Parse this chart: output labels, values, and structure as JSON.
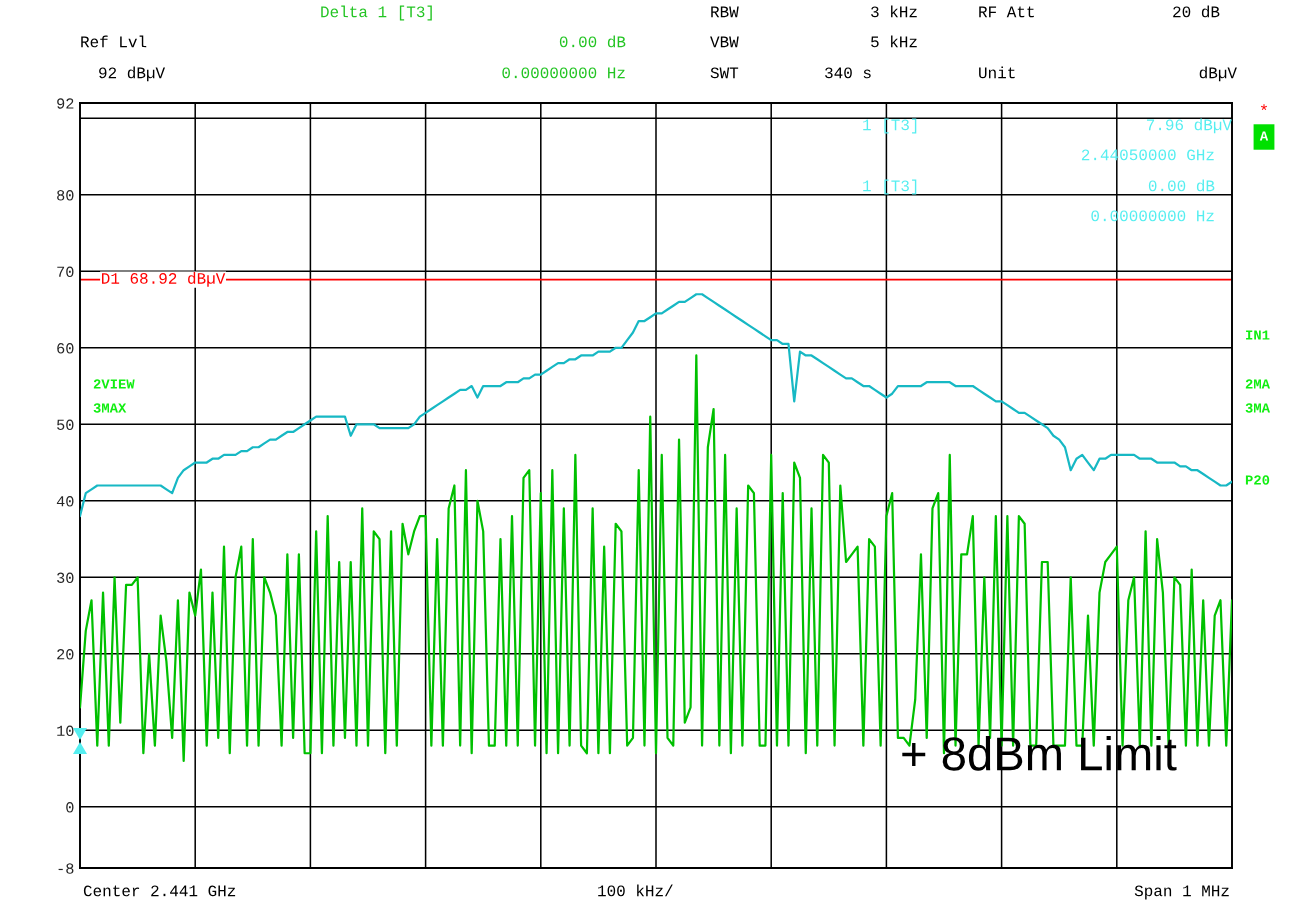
{
  "chart_data": {
    "type": "line",
    "annotations": [
      "Delta 1 [T3]",
      "RBW",
      "3 kHz",
      "RF Att",
      "20 dB",
      "Ref Lvl",
      "0.00 dB",
      "VBW",
      "5 kHz",
      "92 dBµV",
      "0.00000000 Hz",
      "SWT",
      "340 s",
      "Unit",
      "dBµV",
      "1 [T3]",
      "7.96 dBµV",
      "2.44050000 GHz",
      "1 [T3]",
      "0.00 dB",
      "0.00000000 Hz",
      "*",
      "A",
      "IN1",
      "2MA",
      "3MA",
      "P20",
      "2VIEW",
      "3MAX",
      "+ 8dBm Limit",
      "Center 2.441 GHz",
      "100 kHz/",
      "Span 1 MHz"
    ],
    "categories": [
      null,
      null,
      null,
      null,
      null,
      null,
      null,
      null,
      null,
      null,
      null,
      null,
      null,
      null,
      null,
      null,
      null,
      null,
      null,
      null,
      null,
      null,
      null,
      null,
      null,
      null,
      null,
      null,
      null,
      null,
      null,
      null,
      null,
      null,
      null,
      null,
      null,
      null,
      null,
      null,
      null,
      null,
      null,
      null,
      null,
      null,
      null,
      null,
      null,
      null,
      null,
      null,
      null,
      null,
      null,
      null,
      null,
      null,
      null,
      null,
      null,
      null,
      null,
      null,
      null,
      null,
      null,
      null,
      null,
      null,
      null,
      null,
      null,
      null,
      null,
      null,
      null,
      null,
      null,
      null,
      null,
      null,
      null,
      null,
      null,
      null,
      null,
      null,
      null,
      null,
      null,
      null,
      null,
      null,
      null,
      null,
      null,
      null,
      null,
      null,
      null,
      null,
      null,
      null,
      null,
      null,
      null,
      null,
      null,
      null,
      null,
      null,
      null,
      null,
      null,
      null,
      null,
      null,
      null,
      null,
      null,
      null,
      null,
      null,
      null,
      null,
      null,
      null,
      null,
      null,
      null,
      null,
      null,
      null,
      null,
      null,
      null,
      null,
      null,
      null,
      null,
      null,
      null,
      null,
      null,
      null,
      null,
      null,
      null,
      null,
      null,
      null,
      null,
      null,
      null,
      null,
      null,
      null,
      null,
      null,
      null,
      null,
      null,
      null,
      null,
      null,
      null,
      null,
      null,
      null,
      null,
      null,
      null,
      null,
      null,
      null,
      null,
      null,
      null,
      null,
      null,
      null,
      null,
      null,
      null,
      null,
      null,
      null,
      null,
      null,
      null,
      null,
      null,
      null,
      null,
      null,
      null,
      null,
      null,
      null,
      null
    ],
    "ylim": [
      -8,
      92
    ],
    "yticks": [
      -8,
      0,
      10,
      20,
      30,
      40,
      50,
      60,
      70,
      80,
      {
        "value": 90,
        "label": null
      },
      92
    ],
    "grid": true,
    "line_style": "solid",
    "ref_lines": [
      {
        "axis": "y",
        "value": 68.92,
        "label": "D1 68.92 dBµV",
        "color": "#ff0000"
      }
    ],
    "series": [
      {
        "color": "#00c000",
        "values": [
          13,
          23,
          27,
          8,
          28,
          8,
          30,
          11,
          29,
          29,
          30,
          7,
          20,
          8,
          25,
          19,
          9,
          27,
          6,
          28,
          25,
          31,
          8,
          28,
          9,
          34,
          7,
          30,
          34,
          8,
          35,
          8,
          30,
          28,
          25,
          8,
          33,
          9,
          33,
          7,
          7,
          36,
          7,
          38,
          8,
          32,
          9,
          32,
          8,
          39,
          8,
          36,
          35,
          7,
          36,
          8,
          37,
          33,
          36,
          38,
          38,
          8,
          35,
          8,
          39,
          42,
          8,
          44,
          7,
          40,
          36,
          8,
          8,
          35,
          8,
          38,
          8,
          43,
          44,
          8,
          41,
          7,
          44,
          7,
          39,
          8,
          46,
          8,
          7,
          39,
          7,
          34,
          7,
          37,
          36,
          8,
          9,
          44,
          8,
          51,
          7,
          46,
          9,
          8,
          48,
          11,
          13,
          59,
          8,
          47,
          52,
          8,
          46,
          7,
          39,
          8,
          42,
          41,
          8,
          8,
          46,
          8,
          41,
          8,
          45,
          43,
          7,
          39,
          8,
          46,
          45,
          8,
          42,
          32,
          33,
          34,
          8,
          35,
          34,
          8,
          38,
          41,
          9,
          9,
          8,
          14,
          33,
          9,
          39,
          41,
          7,
          46,
          8,
          33,
          33,
          38,
          8,
          30,
          9,
          38,
          8,
          38,
          8,
          38,
          37,
          8,
          8,
          32,
          32,
          8,
          8,
          8,
          30,
          8,
          8,
          25,
          8,
          28,
          32,
          33,
          34,
          8,
          27,
          30,
          8,
          36,
          8,
          35,
          28,
          8,
          30,
          29,
          8,
          31,
          8,
          27,
          8,
          25,
          27,
          8,
          27
        ]
      },
      {
        "color": "#17b8c4",
        "values": [
          38,
          41,
          41.5,
          42,
          42,
          42,
          42,
          42,
          42,
          42,
          42,
          42,
          42,
          42,
          42,
          41.5,
          41,
          43,
          44,
          44.5,
          45,
          45,
          45,
          45.5,
          45.5,
          46,
          46,
          46,
          46.5,
          46.5,
          47,
          47,
          47.5,
          48,
          48,
          48.5,
          49,
          49,
          49.5,
          50,
          50.5,
          51,
          51,
          51,
          51,
          51,
          51,
          48.5,
          50,
          50,
          50,
          50,
          49.5,
          49.5,
          49.5,
          49.5,
          49.5,
          49.5,
          50,
          51,
          51.5,
          52,
          52.5,
          53,
          53.5,
          54,
          54.5,
          54.5,
          55,
          53.5,
          55,
          55,
          55,
          55,
          55.5,
          55.5,
          55.5,
          56,
          56,
          56.5,
          56.5,
          57,
          57.5,
          58,
          58,
          58.5,
          58.5,
          59,
          59,
          59,
          59.5,
          59.5,
          59.5,
          60,
          60,
          61,
          62,
          63.5,
          63.5,
          64,
          64.5,
          64.5,
          65,
          65.5,
          66,
          66,
          66.5,
          67,
          67,
          66.5,
          66,
          65.5,
          65,
          64.5,
          64,
          63.5,
          63,
          62.5,
          62,
          61.5,
          61,
          61,
          60.5,
          60.5,
          53,
          59.5,
          59,
          59,
          58.5,
          58,
          57.5,
          57,
          56.5,
          56,
          56,
          55.5,
          55,
          55,
          54.5,
          54,
          53.5,
          54,
          55,
          55,
          55,
          55,
          55,
          55.5,
          55.5,
          55.5,
          55.5,
          55.5,
          55,
          55,
          55,
          55,
          54.5,
          54,
          53.5,
          53,
          53,
          52.5,
          52,
          51.5,
          51.5,
          51,
          50.5,
          50,
          49.5,
          48.5,
          48,
          47,
          44,
          45.5,
          46,
          45,
          44,
          45.5,
          45.5,
          46,
          46,
          46,
          46,
          46,
          45.5,
          45.5,
          45.5,
          45,
          45,
          45,
          45,
          44.5,
          44.5,
          44,
          44,
          43.5,
          43,
          42.5,
          42,
          42,
          42.5
        ]
      }
    ]
  }
}
